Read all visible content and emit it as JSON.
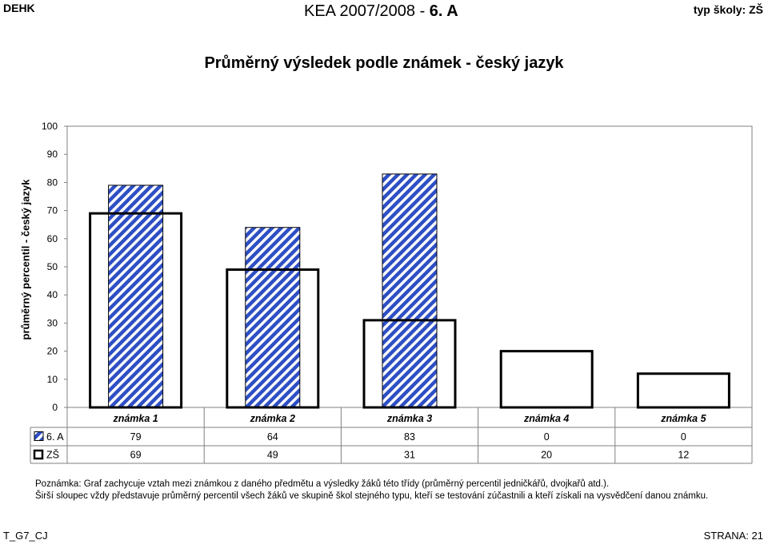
{
  "header": {
    "left": "DEHK",
    "center_prefix": "KEA 2007/2008 -",
    "center_class": "6. A",
    "right": "typ školy: ZŠ"
  },
  "chart_data": {
    "type": "bar",
    "title": "Průměrný výsledek podle známek - český jazyk",
    "ylabel": "průměrný percentil - český jazyk",
    "xlabel": "",
    "ylim": [
      0,
      100
    ],
    "yticks": [
      0,
      10,
      20,
      30,
      40,
      50,
      60,
      70,
      80,
      90,
      100
    ],
    "grid": false,
    "categories": [
      "známka 1",
      "známka 2",
      "známka 3",
      "známka 4",
      "známka 5"
    ],
    "series": [
      {
        "name": "6. A",
        "values": [
          79,
          64,
          83,
          0,
          0
        ],
        "fill": "diagonal-hatch",
        "color": "#2e4fc4"
      },
      {
        "name": "ZŠ",
        "values": [
          69,
          49,
          31,
          20,
          12
        ],
        "fill": "none",
        "color": "#000000"
      }
    ],
    "legend": "data-table"
  },
  "notes": {
    "line1": "Poznámka: Graf zachycuje vztah mezi známkou z daného předmětu a výsledky žáků této třídy (průměrný percentil jedničkářů, dvojkařů atd.).",
    "line2": "Širší sloupec vždy představuje průměrný percentil všech žáků ve skupině škol stejného typu, kteří se testování zúčastnili a kteří získali na vysvědčení danou známku."
  },
  "footer": {
    "left": "T_G7_CJ",
    "right": "STRANA: 21"
  }
}
